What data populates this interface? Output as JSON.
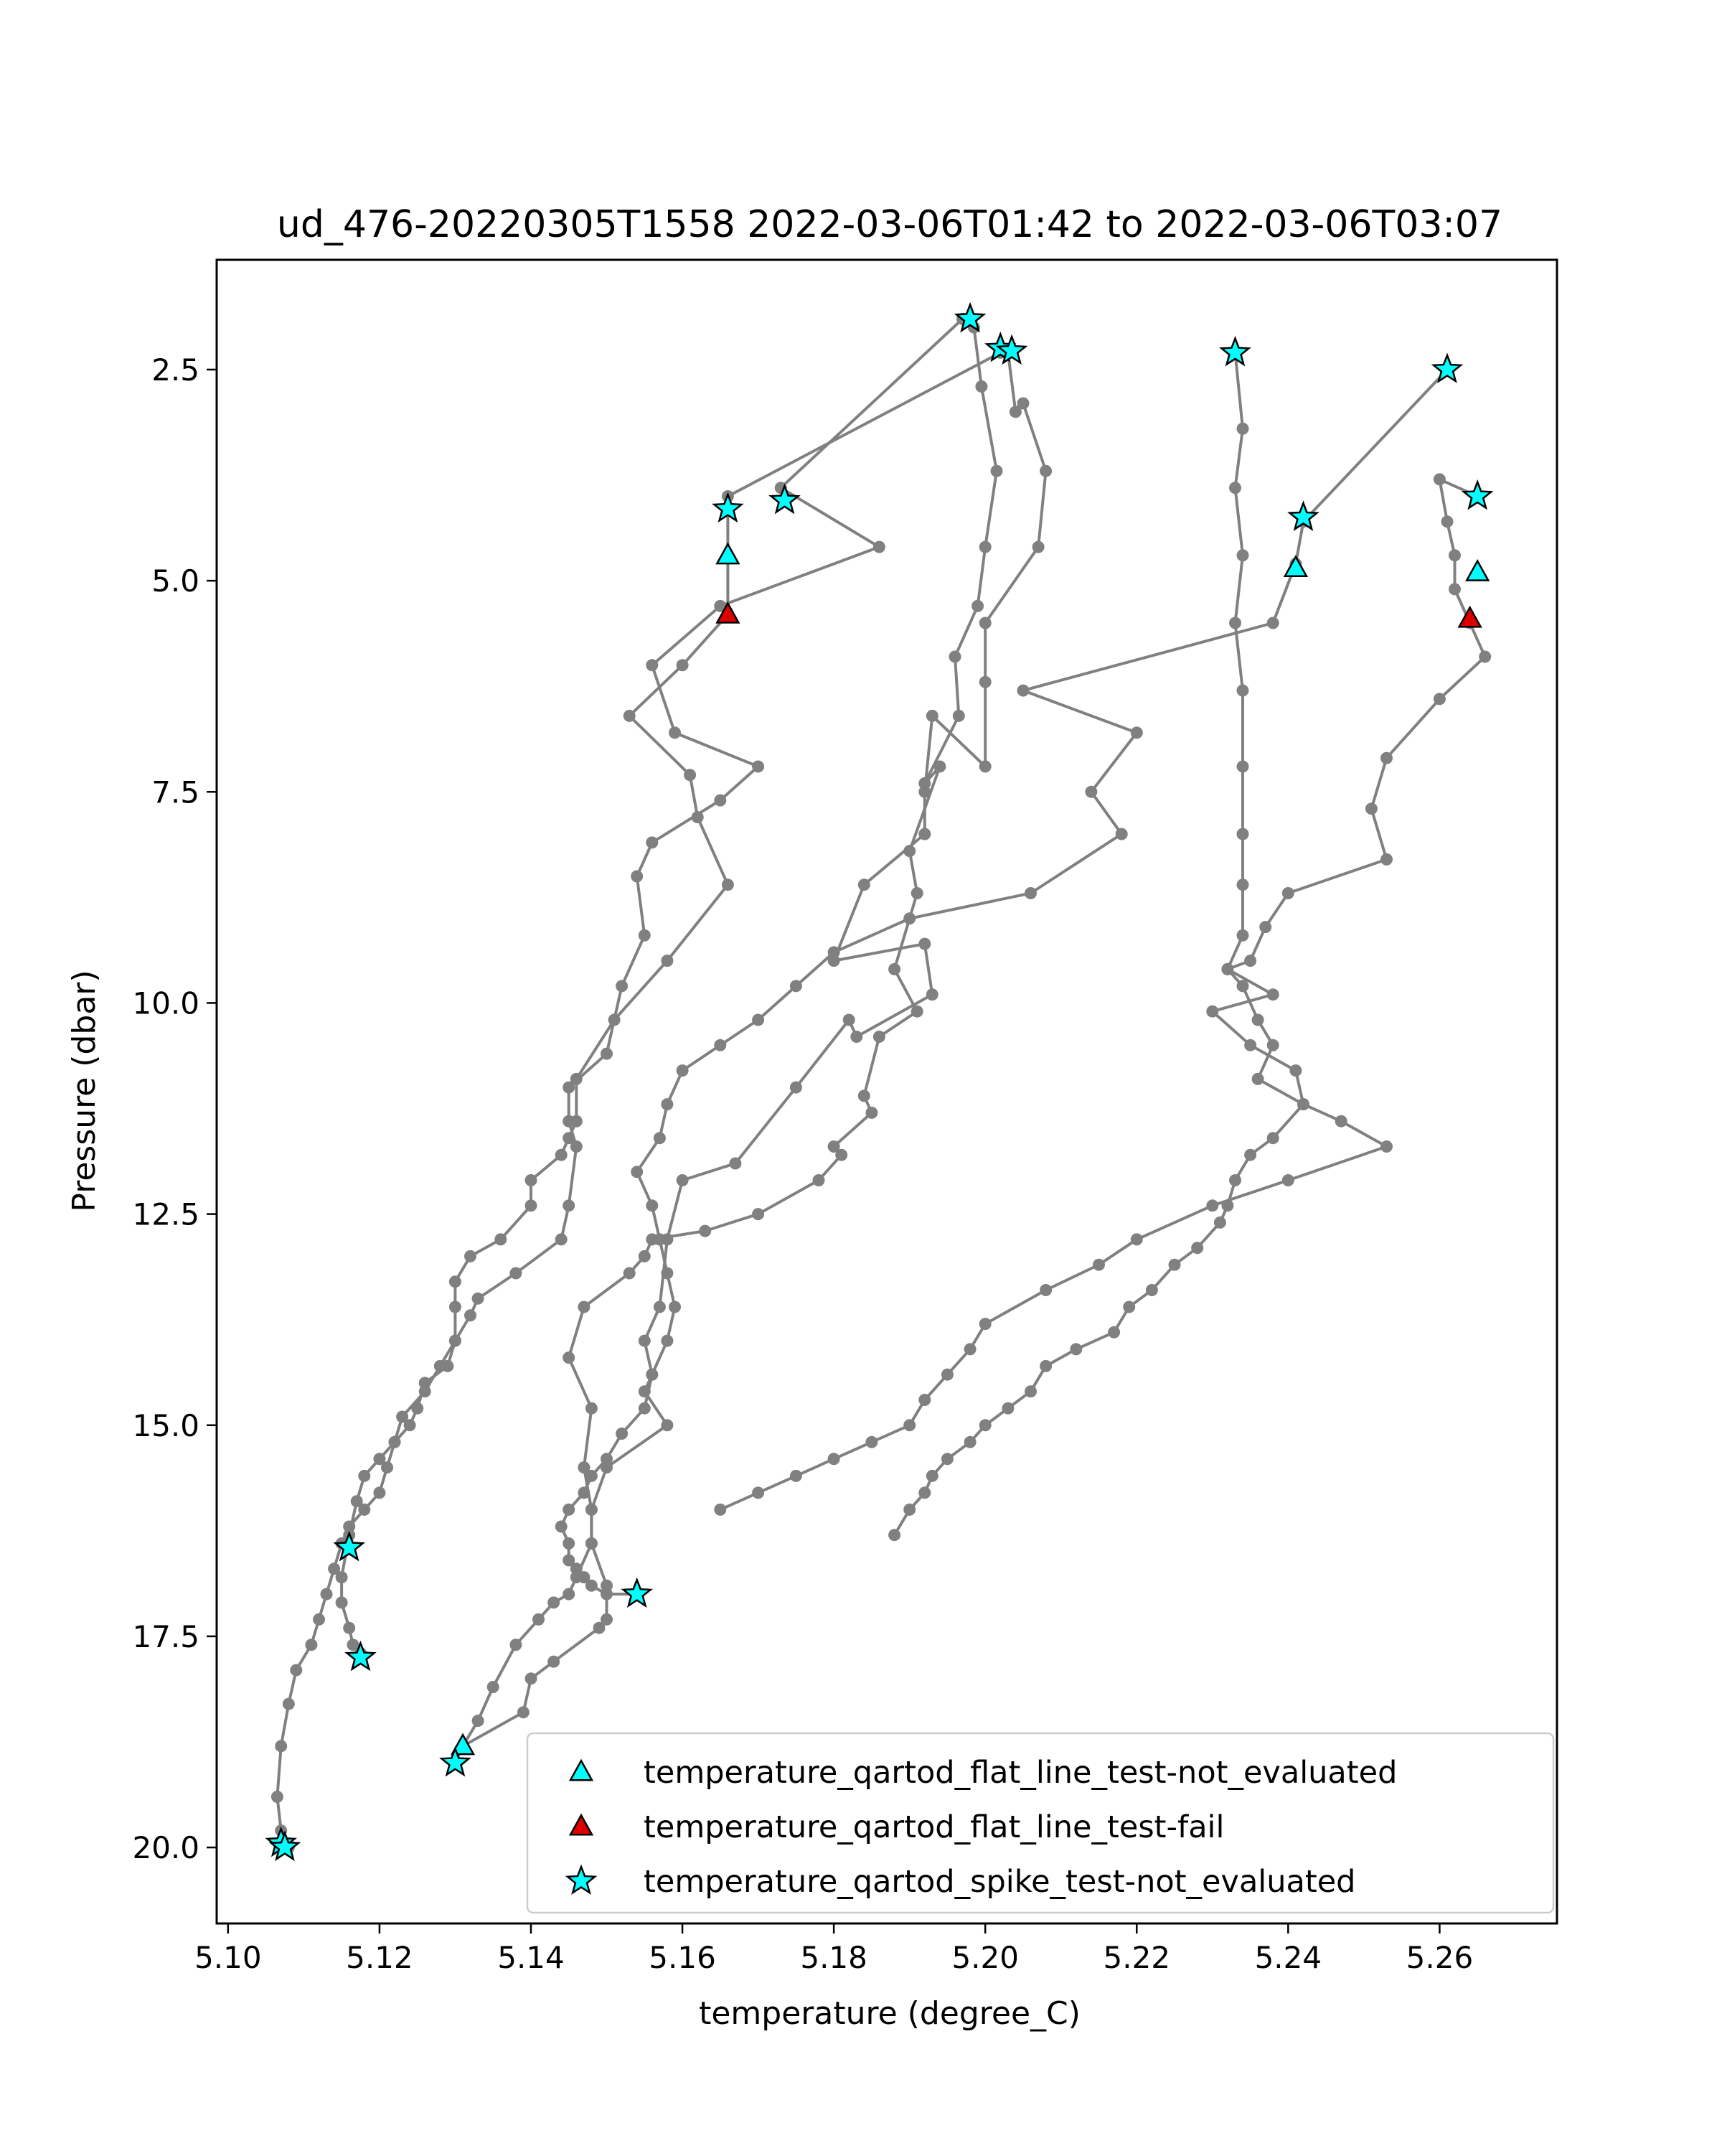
{
  "chart_data": {
    "type": "scatter",
    "title": "ud_476-20220305T1558 2022-03-06T01:42 to 2022-03-06T03:07",
    "xlabel": "temperature (degree_C)",
    "ylabel": "Pressure (dbar)",
    "xlim": [
      5.0985,
      5.2755
    ],
    "ylim": [
      20.9,
      1.2
    ],
    "y_inverted": true,
    "xticks": [
      5.1,
      5.12,
      5.14,
      5.16,
      5.18,
      5.2,
      5.22,
      5.24,
      5.26
    ],
    "xtick_labels": [
      "5.10",
      "5.12",
      "5.14",
      "5.16",
      "5.18",
      "5.20",
      "5.22",
      "5.24",
      "5.26"
    ],
    "yticks": [
      2.5,
      5.0,
      7.5,
      10.0,
      12.5,
      15.0,
      17.5,
      20.0
    ],
    "ytick_labels": [
      "2.5",
      "5.0",
      "7.5",
      "10.0",
      "12.5",
      "15.0",
      "17.5",
      "20.0"
    ],
    "grid": false,
    "legend_position": "lower-right",
    "colors": {
      "profile_line": "#808080",
      "profile_point": "#808080",
      "not_evaluated": "#00ffff",
      "fail": "#dd0000",
      "marker_edge": "#000000"
    },
    "profiles": [
      {
        "x": [
          5.1985,
          5.1995,
          5.2015,
          5.2,
          5.199,
          5.196,
          5.1965,
          5.192,
          5.194,
          5.19,
          5.191,
          5.188,
          5.191,
          5.186,
          5.184,
          5.185,
          5.18,
          5.181,
          5.178,
          5.17,
          5.163,
          5.156,
          5.155,
          5.153,
          5.147,
          5.145,
          5.148,
          5.147,
          5.148,
          5.148,
          5.15,
          5.15,
          5.149,
          5.143,
          5.14,
          5.139,
          5.131,
          5.13
        ],
        "y": [
          2.0,
          2.7,
          3.7,
          4.6,
          5.3,
          5.9,
          6.6,
          7.4,
          7.2,
          8.2,
          8.7,
          9.6,
          10.1,
          10.4,
          11.1,
          11.3,
          11.7,
          11.8,
          12.1,
          12.5,
          12.7,
          12.8,
          13.0,
          13.2,
          13.6,
          14.2,
          14.8,
          15.5,
          16.0,
          16.4,
          16.9,
          17.3,
          17.4,
          17.8,
          18.0,
          18.4,
          18.8,
          19.0
        ]
      },
      {
        "x": [
          5.203,
          5.204,
          5.205,
          5.208,
          5.207,
          5.2,
          5.2,
          5.2,
          5.193,
          5.192,
          5.192,
          5.184,
          5.18,
          5.192,
          5.193,
          5.183,
          5.182,
          5.175,
          5.167,
          5.16,
          5.158,
          5.157,
          5.155,
          5.156,
          5.155,
          5.158,
          5.15,
          5.148,
          5.148,
          5.146,
          5.145,
          5.143,
          5.141,
          5.138,
          5.135,
          5.133,
          5.131
        ],
        "y": [
          2.3,
          3.0,
          2.9,
          3.7,
          4.6,
          5.5,
          6.2,
          7.2,
          6.6,
          7.5,
          8.0,
          8.6,
          9.5,
          9.3,
          9.9,
          10.4,
          10.2,
          11.0,
          11.9,
          12.1,
          12.8,
          13.6,
          14.0,
          14.4,
          14.6,
          15.0,
          15.5,
          16.0,
          16.4,
          16.8,
          17.0,
          17.1,
          17.3,
          17.6,
          18.1,
          18.5,
          18.8
        ]
      },
      {
        "x": [
          5.202,
          5.166,
          5.166,
          5.166,
          5.16,
          5.153,
          5.161,
          5.162,
          5.166,
          5.158,
          5.151,
          5.146,
          5.146,
          5.145,
          5.144,
          5.14,
          5.14,
          5.136,
          5.132,
          5.13,
          5.13,
          5.13,
          5.129,
          5.126,
          5.125,
          5.124,
          5.122,
          5.12,
          5.118,
          5.117,
          5.116,
          5.115,
          5.115,
          5.116,
          5.1165,
          5.1175
        ],
        "y": [
          2.3,
          4.0,
          4.7,
          5.4,
          6.0,
          6.6,
          7.3,
          7.8,
          8.6,
          9.5,
          10.2,
          10.9,
          11.4,
          11.6,
          11.8,
          12.1,
          12.4,
          12.8,
          13.0,
          13.3,
          13.6,
          14.0,
          14.3,
          14.5,
          14.8,
          15.0,
          15.2,
          15.4,
          15.6,
          15.9,
          16.3,
          16.8,
          17.1,
          17.4,
          17.6,
          17.7
        ]
      },
      {
        "x": [
          5.197,
          5.173,
          5.186,
          5.165,
          5.156,
          5.159,
          5.17,
          5.165,
          5.156,
          5.154,
          5.155,
          5.152,
          5.15,
          5.145,
          5.145,
          5.146,
          5.145,
          5.144,
          5.138,
          5.133,
          5.132,
          5.13,
          5.128,
          5.126,
          5.123,
          5.122,
          5.121,
          5.12,
          5.118,
          5.116,
          5.115,
          5.114,
          5.113,
          5.112,
          5.111,
          5.109,
          5.108,
          5.107,
          5.1065,
          5.107,
          5.108
        ],
        "y": [
          1.9,
          3.9,
          4.6,
          5.3,
          6.0,
          6.8,
          7.2,
          7.6,
          8.1,
          8.5,
          9.2,
          9.8,
          10.6,
          11.0,
          11.4,
          11.7,
          12.4,
          12.8,
          13.2,
          13.5,
          13.7,
          14.0,
          14.3,
          14.6,
          14.9,
          15.2,
          15.5,
          15.8,
          16.0,
          16.2,
          16.4,
          16.7,
          17.0,
          17.3,
          17.6,
          17.9,
          18.3,
          18.8,
          19.4,
          19.8,
          20.0
        ]
      },
      {
        "x": [
          5.233,
          5.234,
          5.233,
          5.234,
          5.233,
          5.234,
          5.234,
          5.234,
          5.234,
          5.234,
          5.232,
          5.234,
          5.236,
          5.238,
          5.236,
          5.242,
          5.238,
          5.235,
          5.233,
          5.232,
          5.231,
          5.228,
          5.225,
          5.222,
          5.219,
          5.217,
          5.212,
          5.208,
          5.206,
          5.203,
          5.2,
          5.198,
          5.195,
          5.193,
          5.192,
          5.19,
          5.188
        ],
        "y": [
          2.3,
          3.2,
          3.9,
          4.7,
          5.5,
          6.3,
          7.2,
          8.0,
          8.6,
          9.2,
          9.6,
          9.8,
          10.2,
          10.5,
          10.9,
          11.2,
          11.6,
          11.8,
          12.1,
          12.4,
          12.6,
          12.9,
          13.1,
          13.4,
          13.6,
          13.9,
          14.1,
          14.3,
          14.6,
          14.8,
          15.0,
          15.2,
          15.4,
          15.6,
          15.8,
          16.0,
          16.3
        ]
      },
      {
        "x": [
          5.265,
          5.26,
          5.261,
          5.262,
          5.262,
          5.264,
          5.266,
          5.26,
          5.253,
          5.251,
          5.253,
          5.24,
          5.237,
          5.235,
          5.232,
          5.238,
          5.23,
          5.235,
          5.241,
          5.242,
          5.247,
          5.253,
          5.24,
          5.23,
          5.22,
          5.215,
          5.208,
          5.2,
          5.198,
          5.195,
          5.192,
          5.19,
          5.185,
          5.18,
          5.175,
          5.17,
          5.165
        ],
        "y": [
          4.0,
          3.8,
          4.3,
          4.7,
          5.1,
          5.5,
          5.9,
          6.4,
          7.1,
          7.7,
          8.3,
          8.7,
          9.1,
          9.5,
          9.6,
          9.9,
          10.1,
          10.5,
          10.8,
          11.2,
          11.4,
          11.7,
          12.1,
          12.4,
          12.8,
          13.1,
          13.4,
          13.8,
          14.1,
          14.4,
          14.7,
          15.0,
          15.2,
          15.4,
          15.6,
          15.8,
          16.0
        ]
      },
      {
        "x": [
          5.261,
          5.242,
          5.241,
          5.238,
          5.205,
          5.22,
          5.214,
          5.218,
          5.206,
          5.19,
          5.18,
          5.175,
          5.17,
          5.165,
          5.16,
          5.158,
          5.157,
          5.154,
          5.156,
          5.157,
          5.158,
          5.159,
          5.158,
          5.156,
          5.155,
          5.152,
          5.15,
          5.148,
          5.147,
          5.145,
          5.144,
          5.145,
          5.145,
          5.146,
          5.147,
          5.148,
          5.15,
          5.154
        ],
        "y": [
          2.5,
          4.3,
          4.8,
          5.5,
          6.3,
          6.8,
          7.5,
          8.0,
          8.7,
          9.0,
          9.4,
          9.8,
          10.2,
          10.5,
          10.8,
          11.2,
          11.6,
          12.0,
          12.4,
          12.8,
          13.2,
          13.6,
          14.0,
          14.4,
          14.8,
          15.1,
          15.4,
          15.6,
          15.8,
          16.0,
          16.2,
          16.4,
          16.6,
          16.7,
          16.8,
          16.9,
          17.0,
          17.0
        ]
      }
    ],
    "series": [
      {
        "name": "temperature_qartod_flat_line_test-not_evaluated",
        "marker": "triangle",
        "color": "#00ffff",
        "x": [
          5.166,
          5.241,
          5.265,
          5.131
        ],
        "y": [
          4.7,
          4.85,
          4.9,
          18.8
        ]
      },
      {
        "name": "temperature_qartod_flat_line_test-fail",
        "marker": "triangle",
        "color": "#dd0000",
        "x": [
          5.166,
          5.264
        ],
        "y": [
          5.4,
          5.45
        ]
      },
      {
        "name": "temperature_qartod_spike_test-not_evaluated",
        "marker": "star",
        "color": "#00ffff",
        "x": [
          5.198,
          5.202,
          5.2035,
          5.233,
          5.261,
          5.265,
          5.242,
          5.166,
          5.1735,
          5.116,
          5.1175,
          5.154,
          5.13,
          5.107,
          5.1075
        ],
        "y": [
          1.9,
          2.25,
          2.28,
          2.3,
          2.5,
          4.0,
          4.25,
          4.15,
          4.05,
          16.45,
          17.75,
          17.0,
          19.0,
          19.95,
          20.0
        ]
      }
    ]
  }
}
